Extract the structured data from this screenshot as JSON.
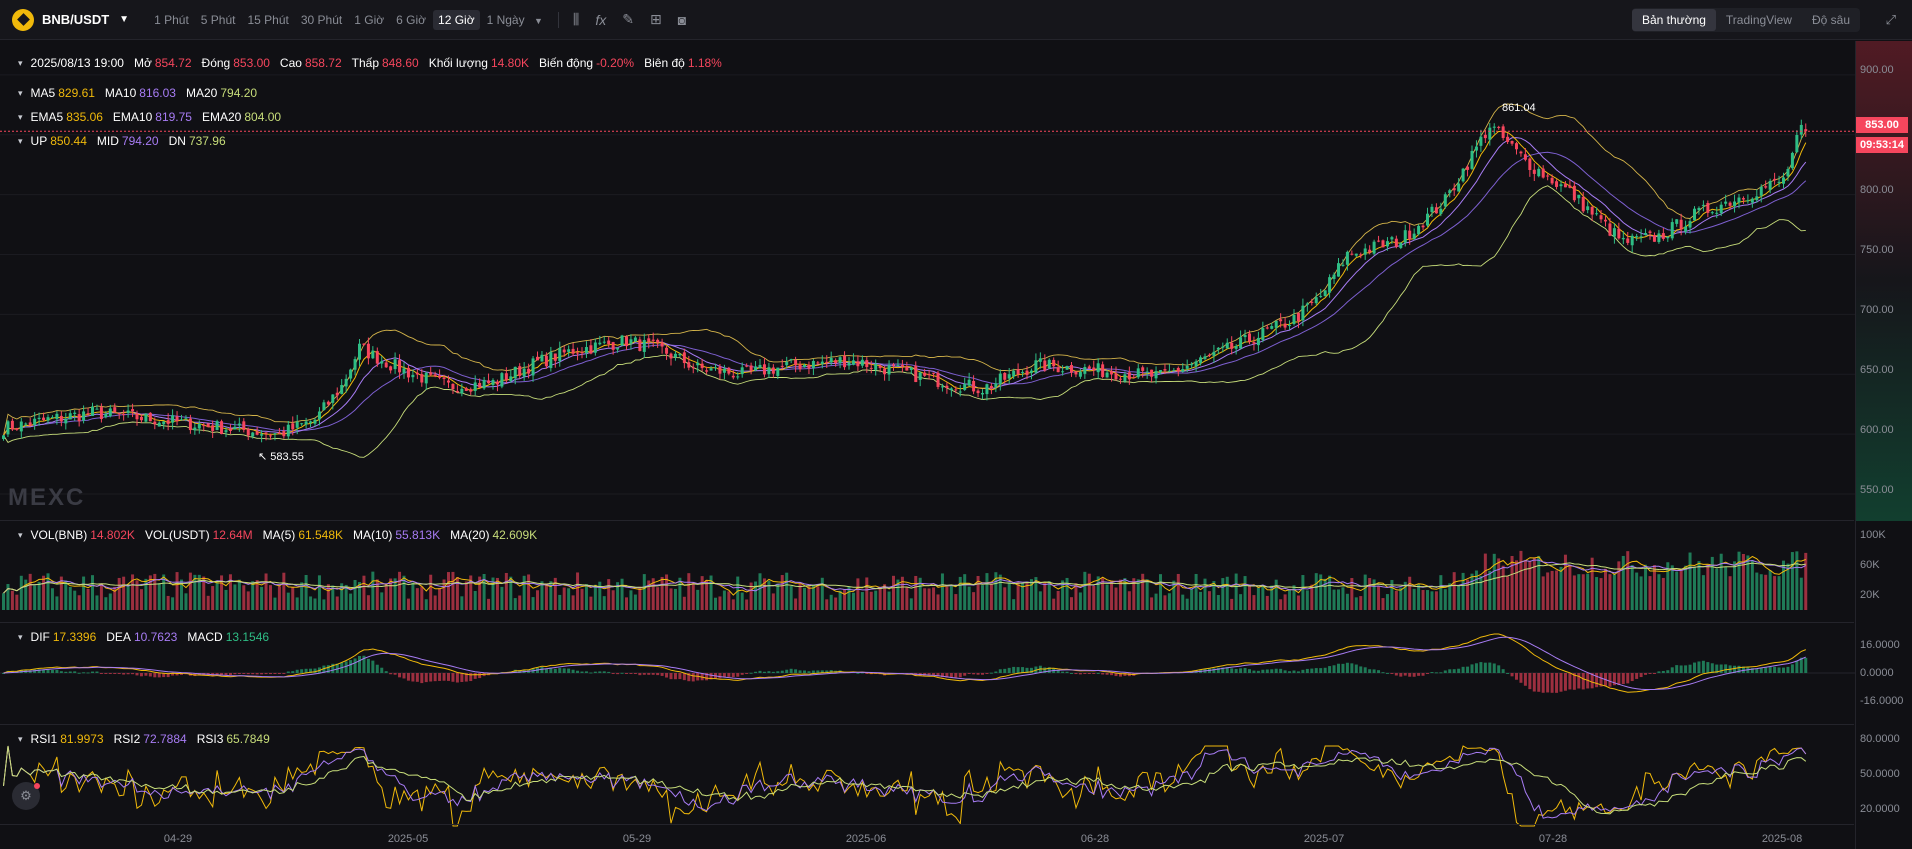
{
  "toolbar": {
    "pair": "BNB/USDT",
    "intervals": [
      "1 Phút",
      "5 Phút",
      "15 Phút",
      "30 Phút",
      "1 Giờ",
      "6 Giờ",
      "12 Giờ"
    ],
    "active_interval": "12 Giờ",
    "interval_select": "1 Ngày",
    "views": [
      "Bản thường",
      "TradingView",
      "Độ sâu"
    ],
    "active_view": "Bản thường",
    "tool_icons": [
      "candles-icon",
      "formula-icon",
      "pencil-icon",
      "layout-icon",
      "camera-icon"
    ]
  },
  "ohlc": {
    "date": "2025/08/13 19:00",
    "open_label": "Mở",
    "open": "854.72",
    "close_label": "Đóng",
    "close": "853.00",
    "high_label": "Cao",
    "high": "858.72",
    "low_label": "Thấp",
    "low": "848.60",
    "volume_label": "Khối lượng",
    "volume": "14.80K",
    "change_label": "Biến động",
    "change": "-0.20%",
    "amplitude_label": "Biên độ",
    "amplitude": "1.18%"
  },
  "ma": {
    "ma5_label": "MA5",
    "ma5": "829.61",
    "ma10_label": "MA10",
    "ma10": "816.03",
    "ma20_label": "MA20",
    "ma20": "794.20"
  },
  "ema": {
    "ema5_label": "EMA5",
    "ema5": "835.06",
    "ema10_label": "EMA10",
    "ema10": "819.75",
    "ema20_label": "EMA20",
    "ema20": "804.00"
  },
  "boll": {
    "up_label": "UP",
    "up": "850.44",
    "mid_label": "MID",
    "mid": "794.20",
    "dn_label": "DN",
    "dn": "737.96"
  },
  "vol": {
    "vol_label": "VOL(BNB)",
    "vol": "14.802K",
    "volu_label": "VOL(USDT)",
    "volu": "12.64M",
    "ma5_label": "MA(5)",
    "ma5": "61.548K",
    "ma10_label": "MA(10)",
    "ma10": "55.813K",
    "ma20_label": "MA(20)",
    "ma20": "42.609K"
  },
  "macd": {
    "dif_label": "DIF",
    "dif": "17.3396",
    "dea_label": "DEA",
    "dea": "10.7623",
    "macd_label": "MACD",
    "macd": "13.1546"
  },
  "rsi": {
    "rsi1_label": "RSI1",
    "rsi1": "81.9973",
    "rsi2_label": "RSI2",
    "rsi2": "72.7884",
    "rsi3_label": "RSI3",
    "rsi3": "65.7849"
  },
  "price_axis": [
    "900.00",
    "850.00",
    "800.00",
    "750.00",
    "700.00",
    "650.00",
    "600.00",
    "550.00"
  ],
  "volume_axis": [
    "100K",
    "60K",
    "20K"
  ],
  "macd_axis": [
    "16.0000",
    "0.0000",
    "-16.0000"
  ],
  "rsi_axis": [
    "80.0000",
    "50.0000",
    "20.0000"
  ],
  "last_price": "853.00",
  "countdown": "09:53:14",
  "high_marker": "861.04",
  "low_marker": "583.55",
  "x_axis": [
    "04-29",
    "2025-05",
    "05-29",
    "2025-06",
    "06-28",
    "2025-07",
    "07-28",
    "2025-08"
  ],
  "watermark": "MEXC",
  "colors": {
    "up": "#2ebd85",
    "down": "#f6465d",
    "ma5": "#f0b90b",
    "ma10": "#a77cf4",
    "ma20": "#c7dd7a",
    "background": "#101014"
  },
  "chart_data": {
    "type": "candlestick",
    "price_range": [
      530,
      925
    ],
    "keypoints": [
      [
        0,
        605
      ],
      [
        10,
        612
      ],
      [
        20,
        618
      ],
      [
        35,
        612
      ],
      [
        50,
        605
      ],
      [
        62,
        600
      ],
      [
        70,
        612
      ],
      [
        76,
        640
      ],
      [
        80,
        672
      ],
      [
        86,
        660
      ],
      [
        92,
        650
      ],
      [
        100,
        640
      ],
      [
        110,
        643
      ],
      [
        120,
        660
      ],
      [
        128,
        670
      ],
      [
        140,
        678
      ],
      [
        148,
        670
      ],
      [
        156,
        655
      ],
      [
        166,
        650
      ],
      [
        176,
        657
      ],
      [
        190,
        662
      ],
      [
        210,
        645
      ],
      [
        220,
        638
      ],
      [
        232,
        658
      ],
      [
        244,
        654
      ],
      [
        260,
        648
      ],
      [
        276,
        672
      ],
      [
        290,
        696
      ],
      [
        296,
        715
      ],
      [
        302,
        750
      ],
      [
        314,
        762
      ],
      [
        324,
        795
      ],
      [
        334,
        858
      ],
      [
        342,
        828
      ],
      [
        352,
        802
      ],
      [
        364,
        760
      ],
      [
        372,
        765
      ],
      [
        380,
        783
      ],
      [
        388,
        795
      ],
      [
        400,
        812
      ],
      [
        404,
        855
      ]
    ]
  }
}
